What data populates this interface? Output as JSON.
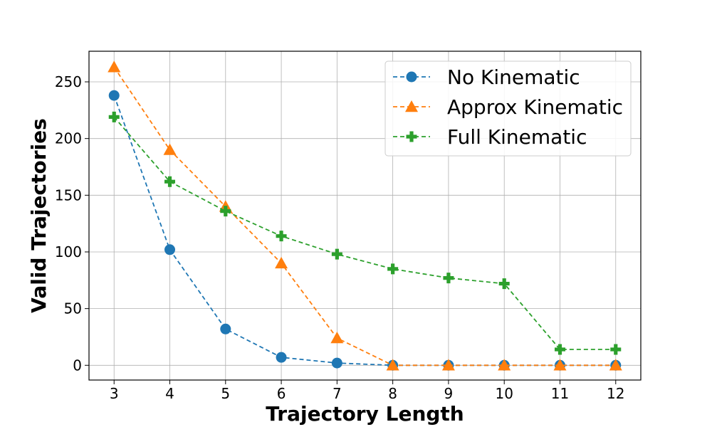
{
  "chart_data": {
    "type": "line",
    "title": "",
    "xlabel": "Trajectory Length",
    "ylabel": "Valid Trajectories",
    "x": [
      3,
      4,
      5,
      6,
      7,
      8,
      9,
      10,
      11,
      12
    ],
    "xlim": [
      2.55,
      12.45
    ],
    "ylim": [
      -13,
      277
    ],
    "xticks": [
      3,
      4,
      5,
      6,
      7,
      8,
      9,
      10,
      11,
      12
    ],
    "yticks": [
      0,
      50,
      100,
      150,
      200,
      250
    ],
    "grid": true,
    "legend_position": "top-right",
    "series": [
      {
        "name": "No Kinematic",
        "color": "#1f77b4",
        "marker": "circle",
        "line_style": "dashed",
        "values": [
          238,
          102,
          32,
          7,
          2,
          0,
          0,
          0,
          0,
          0
        ]
      },
      {
        "name": "Approx Kinematic",
        "color": "#ff7f0e",
        "marker": "triangle",
        "line_style": "dashed",
        "values": [
          263,
          190,
          140,
          90,
          24,
          0,
          0,
          0,
          0,
          0
        ]
      },
      {
        "name": "Full Kinematic",
        "color": "#2ca02c",
        "marker": "plus",
        "line_style": "dashed",
        "values": [
          219,
          162,
          136,
          114,
          98,
          85,
          77,
          72,
          14,
          14
        ]
      }
    ]
  }
}
